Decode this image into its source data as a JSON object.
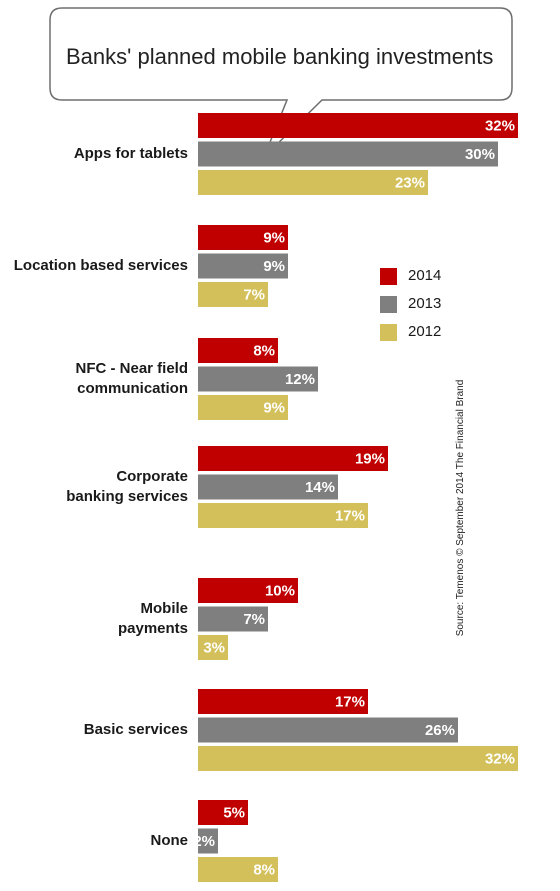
{
  "title": "Banks' planned mobile banking investments",
  "source": "Source: Temenos © September 2014 The Financial Brand",
  "colors": {
    "2014": "#c00000",
    "2013": "#7f7f7f",
    "2012": "#d4c05a"
  },
  "chart_data": {
    "type": "bar",
    "orientation": "horizontal",
    "title": "Banks' planned mobile banking investments",
    "categories": [
      "Apps for tablets",
      "Location based services",
      "NFC - Near field communication",
      "Corporate banking services",
      "Mobile payments",
      "Basic services",
      "None"
    ],
    "category_lines": [
      [
        "Apps for tablets"
      ],
      [
        "Location based services"
      ],
      [
        "NFC - Near field",
        "communication"
      ],
      [
        "Corporate",
        "banking services"
      ],
      [
        "Mobile",
        "payments"
      ],
      [
        "Basic services"
      ],
      [
        "None"
      ]
    ],
    "series": [
      {
        "name": "2014",
        "values": [
          32,
          9,
          8,
          19,
          10,
          17,
          5
        ]
      },
      {
        "name": "2013",
        "values": [
          30,
          9,
          12,
          14,
          7,
          26,
          2
        ]
      },
      {
        "name": "2012",
        "values": [
          23,
          7,
          9,
          17,
          3,
          32,
          8
        ]
      }
    ],
    "value_suffix": "%",
    "legend_position": "right",
    "grid": false
  }
}
